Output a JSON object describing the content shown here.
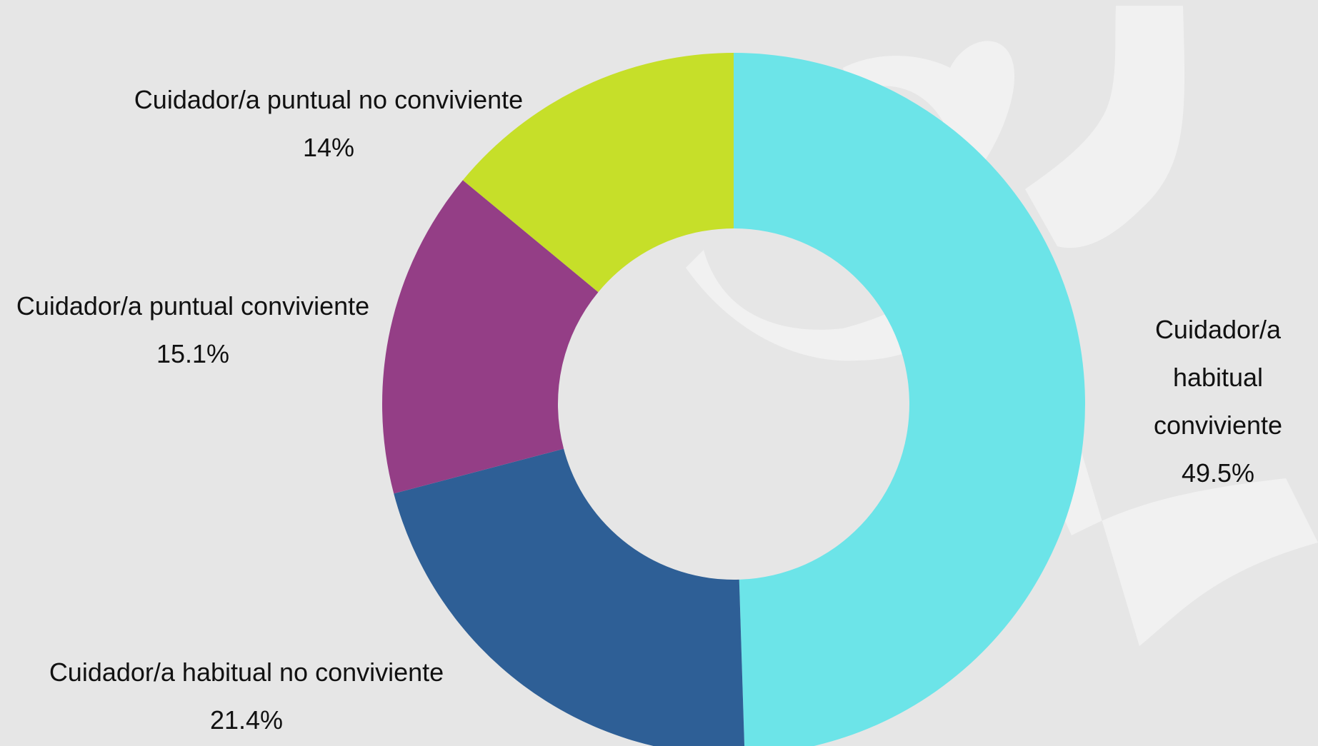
{
  "chart_data": {
    "type": "pie",
    "donut": true,
    "title": "",
    "start_angle_deg": 0,
    "direction": "clockwise",
    "slices": [
      {
        "label_lines": [
          "Cuidador/a",
          "habitual",
          "conviviente"
        ],
        "label": "Cuidador/a habitual conviviente",
        "value": 49.5,
        "value_label": "49.5%",
        "color": "#6ce4e8"
      },
      {
        "label_lines": [
          "Cuidador/a habitual no conviviente"
        ],
        "label": "Cuidador/a habitual no conviviente",
        "value": 21.4,
        "value_label": "21.4%",
        "color": "#2e5f96"
      },
      {
        "label_lines": [
          "Cuidador/a puntual conviviente"
        ],
        "label": "Cuidador/a puntual conviviente",
        "value": 15.1,
        "value_label": "15.1%",
        "color": "#943e86"
      },
      {
        "label_lines": [
          "Cuidador/a puntual no conviviente"
        ],
        "label": "Cuidador/a puntual no conviviente",
        "value": 14.0,
        "value_label": "14%",
        "color": "#c6df29"
      }
    ]
  },
  "colors": {
    "background": "#e6e6e6",
    "watermark": "#f1f1f1"
  }
}
